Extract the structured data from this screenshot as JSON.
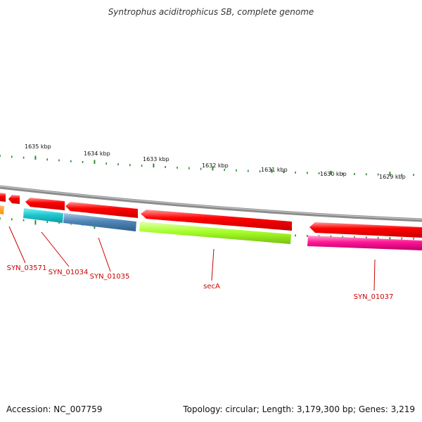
{
  "title": "Syntrophus aciditrophicus SB, complete genome",
  "accession": "Accession: NC_007759",
  "topology": "Topology: circular; Length: 3,179,300 bp; Genes: 3,219",
  "scale_labels": [
    "1635 kbp",
    "1634 kbp",
    "1633 kbp",
    "1632 kbp",
    "1631 kbp",
    "1630 kbp",
    "1629 kbp"
  ],
  "gene_labels": [
    "SYN_03571",
    "SYN_01034",
    "SYN_01035",
    "secA",
    "SYN_01037"
  ],
  "colors": {
    "red": "#ff0000",
    "cyan": "#1fc8d0",
    "steelblue": "#4f86b8",
    "lime": "#a6ff2a",
    "magenta": "#ff1493",
    "orange": "#ff8c00",
    "tick": "#2e8b2e",
    "backbone": "#8c8c8c",
    "label": "#cc0000"
  }
}
